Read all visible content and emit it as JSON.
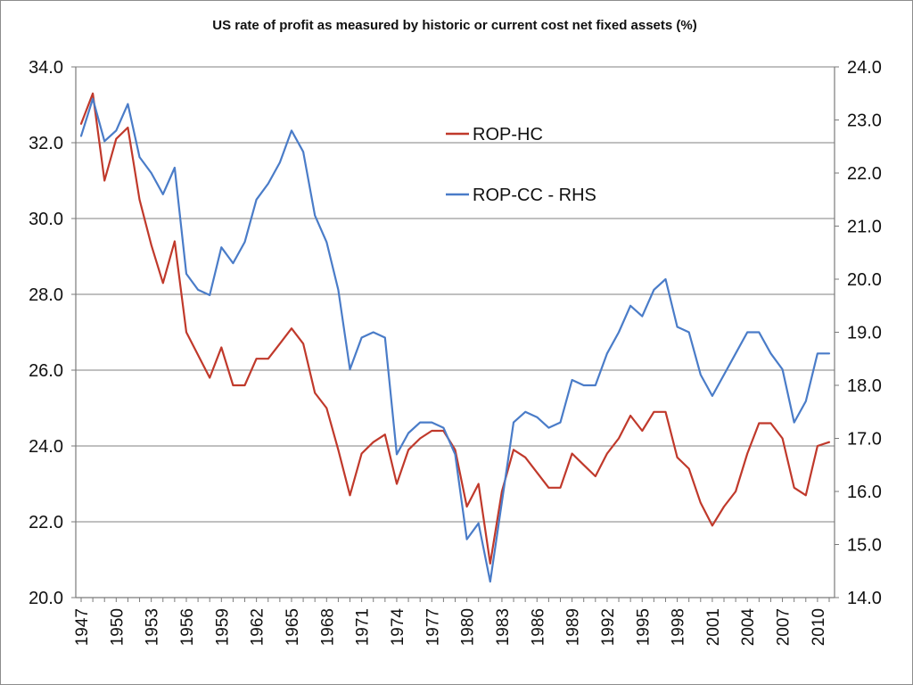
{
  "chart_data": {
    "type": "line",
    "title": "US rate of profit as measured by historic or current cost net fixed assets (%)",
    "x": [
      1947,
      1948,
      1949,
      1950,
      1951,
      1952,
      1953,
      1954,
      1955,
      1956,
      1957,
      1958,
      1959,
      1960,
      1961,
      1962,
      1963,
      1964,
      1965,
      1966,
      1967,
      1968,
      1969,
      1970,
      1971,
      1972,
      1973,
      1974,
      1975,
      1976,
      1977,
      1978,
      1979,
      1980,
      1981,
      1982,
      1983,
      1984,
      1985,
      1986,
      1987,
      1988,
      1989,
      1990,
      1991,
      1992,
      1993,
      1994,
      1995,
      1996,
      1997,
      1998,
      1999,
      2000,
      2001,
      2002,
      2003,
      2004,
      2005,
      2006,
      2007,
      2008,
      2009,
      2010,
      2011
    ],
    "x_tick_labels": [
      "1947",
      "1950",
      "1953",
      "1956",
      "1959",
      "1962",
      "1965",
      "1968",
      "1971",
      "1974",
      "1977",
      "1980",
      "1983",
      "1986",
      "1989",
      "1992",
      "1995",
      "1998",
      "2001",
      "2004",
      "2007",
      "2010"
    ],
    "y_left": {
      "ylim": [
        20.0,
        34.0
      ],
      "ticks": [
        "20.0",
        "22.0",
        "24.0",
        "26.0",
        "28.0",
        "30.0",
        "32.0",
        "34.0"
      ]
    },
    "y_right": {
      "ylim": [
        14.0,
        24.0
      ],
      "ticks": [
        "14.0",
        "15.0",
        "16.0",
        "17.0",
        "18.0",
        "19.0",
        "20.0",
        "21.0",
        "22.0",
        "23.0",
        "24.0"
      ]
    },
    "grid": true,
    "legend_position": "upper-center",
    "series": [
      {
        "name": "ROP-HC",
        "axis": "left",
        "color": "#c0392b",
        "values": [
          32.5,
          33.3,
          31.0,
          32.1,
          32.4,
          30.5,
          29.3,
          28.3,
          29.4,
          27.0,
          26.4,
          25.8,
          26.6,
          25.6,
          25.6,
          26.3,
          26.3,
          26.7,
          27.1,
          26.7,
          25.4,
          25.0,
          23.9,
          22.7,
          23.8,
          24.1,
          24.3,
          23.0,
          23.9,
          24.2,
          24.4,
          24.4,
          23.9,
          22.4,
          23.0,
          20.9,
          22.8,
          23.9,
          23.7,
          23.3,
          22.9,
          22.9,
          23.8,
          23.5,
          23.2,
          23.8,
          24.2,
          24.8,
          24.4,
          24.9,
          24.9,
          23.7,
          23.4,
          22.5,
          21.9,
          22.4,
          22.8,
          23.8,
          24.6,
          24.6,
          24.2,
          22.9,
          22.7,
          24.0,
          24.1
        ]
      },
      {
        "name": "ROP-CC - RHS",
        "axis": "right",
        "color": "#4a7cc8",
        "values": [
          22.7,
          23.4,
          22.6,
          22.8,
          23.3,
          22.3,
          22.0,
          21.6,
          22.1,
          20.1,
          19.8,
          19.7,
          20.6,
          20.3,
          20.7,
          21.5,
          21.8,
          22.2,
          22.8,
          22.4,
          21.2,
          20.7,
          19.8,
          18.3,
          18.9,
          19.0,
          18.9,
          16.7,
          17.1,
          17.3,
          17.3,
          17.2,
          16.7,
          15.1,
          15.4,
          14.3,
          15.8,
          17.3,
          17.5,
          17.4,
          17.2,
          17.3,
          18.1,
          18.0,
          18.0,
          18.6,
          19.0,
          19.5,
          19.3,
          19.8,
          20.0,
          19.1,
          19.0,
          18.2,
          17.8,
          18.2,
          18.6,
          19.0,
          19.0,
          18.6,
          18.3,
          17.3,
          17.7,
          18.6,
          18.6
        ]
      }
    ]
  }
}
